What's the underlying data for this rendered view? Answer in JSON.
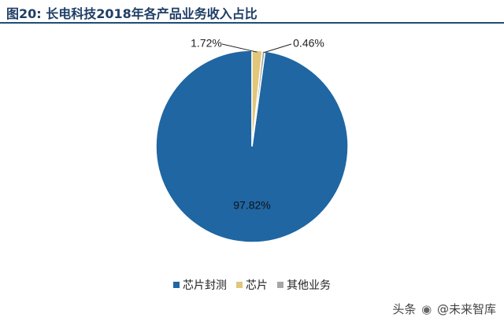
{
  "figure": {
    "label": "图20:",
    "title": "长电科技2018年各产品业务收入占比"
  },
  "chart_data": {
    "type": "pie",
    "title": "长电科技2018年各产品业务收入占比",
    "slices": [
      {
        "name": "芯片封测",
        "value": 97.82,
        "label": "97.82%",
        "color": "#1f66a3"
      },
      {
        "name": "芯片",
        "value": 1.72,
        "label": "1.72%",
        "color": "#e2c77a"
      },
      {
        "name": "其他业务",
        "value": 0.46,
        "label": "0.46%",
        "color": "#a6a6a6"
      }
    ],
    "legend_position": "bottom"
  },
  "watermark": {
    "prefix": "头条",
    "handle": "@未来智库",
    "icon": "wechat-icon"
  }
}
